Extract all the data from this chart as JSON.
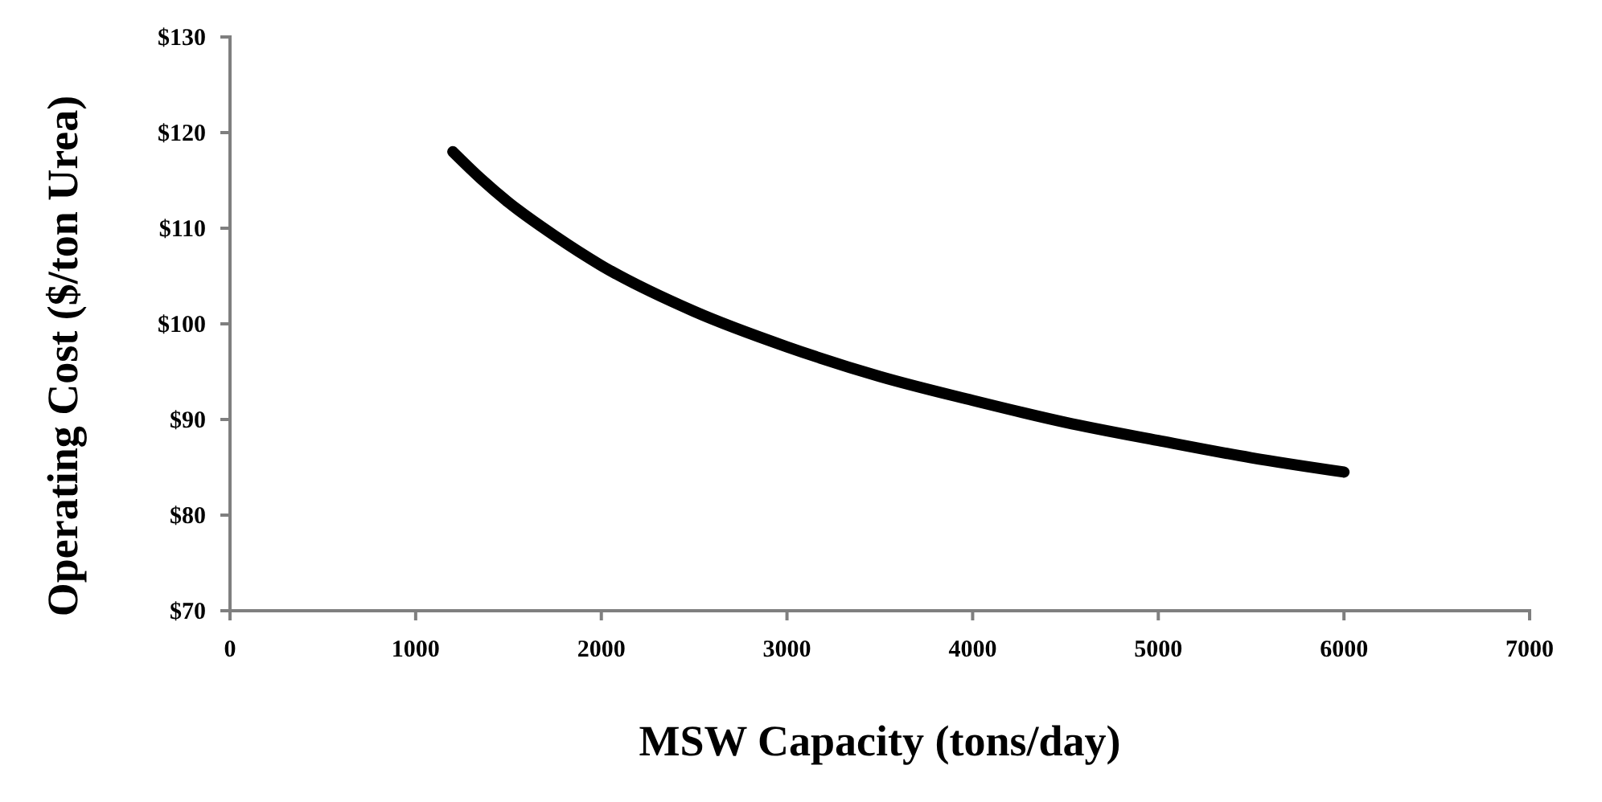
{
  "chart_data": {
    "type": "line",
    "xlabel": "MSW Capacity (tons/day)",
    "ylabel": "Operating Cost ($/ton Urea)",
    "xlim": [
      0,
      7000
    ],
    "xticks": [
      0,
      1000,
      2000,
      3000,
      4000,
      5000,
      6000,
      7000
    ],
    "ylim": [
      70,
      130
    ],
    "yticks": [
      {
        "value": 70,
        "label": "$70"
      },
      {
        "value": 80,
        "label": "$80"
      },
      {
        "value": 90,
        "label": "$90"
      },
      {
        "value": 100,
        "label": "$100"
      },
      {
        "value": 110,
        "label": "$110"
      },
      {
        "value": 120,
        "label": "$120"
      },
      {
        "value": 130,
        "label": "$130"
      }
    ],
    "grid": false,
    "marker": "none",
    "line_style": "solid",
    "series": [
      {
        "color": "#000000",
        "x": [
          1200,
          1350,
          1500,
          1750,
          2000,
          2500,
          3000,
          3500,
          4000,
          4500,
          5000,
          5500,
          6000
        ],
        "values": [
          118,
          115.2,
          112.7,
          109.2,
          106.1,
          101.3,
          97.6,
          94.5,
          92,
          89.7,
          87.8,
          86,
          84.5
        ]
      }
    ]
  }
}
